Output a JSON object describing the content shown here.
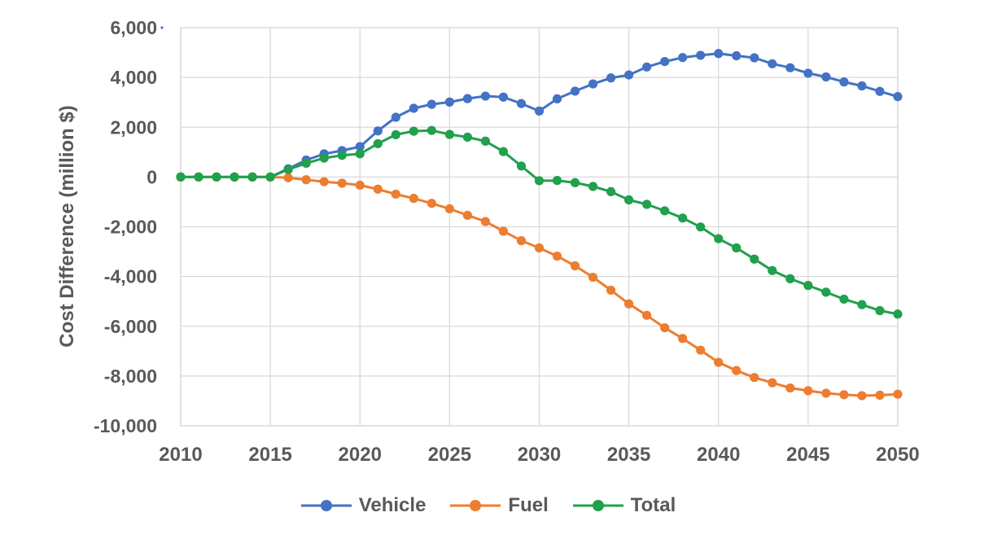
{
  "y_axis_title": "Cost Difference (million $)",
  "colors": {
    "vehicle": "#4472C4",
    "fuel": "#ED7D31",
    "total": "#21A04D",
    "text": "#595959",
    "gridline": "#D9D9D9"
  },
  "legend": [
    {
      "label": "Vehicle",
      "series": "vehicle"
    },
    {
      "label": "Fuel",
      "series": "fuel"
    },
    {
      "label": "Total",
      "series": "total"
    }
  ],
  "chart_data": {
    "type": "line",
    "title": "",
    "xlabel": "",
    "ylabel": "Cost Difference (million $)",
    "x": [
      2010,
      2011,
      2012,
      2013,
      2014,
      2015,
      2016,
      2017,
      2018,
      2019,
      2020,
      2021,
      2022,
      2023,
      2024,
      2025,
      2026,
      2027,
      2028,
      2029,
      2030,
      2031,
      2032,
      2033,
      2034,
      2035,
      2036,
      2037,
      2038,
      2039,
      2040,
      2041,
      2042,
      2043,
      2044,
      2045,
      2046,
      2047,
      2048,
      2049,
      2050
    ],
    "series": [
      {
        "name": "Vehicle",
        "color": "#4472C4",
        "values": [
          0,
          0,
          0,
          0,
          0,
          0,
          330,
          680,
          930,
          1060,
          1220,
          1850,
          2400,
          2760,
          2920,
          3010,
          3150,
          3250,
          3210,
          2950,
          2650,
          3140,
          3450,
          3740,
          3980,
          4100,
          4420,
          4640,
          4800,
          4890,
          4960,
          4870,
          4790,
          4550,
          4390,
          4170,
          4020,
          3820,
          3660,
          3440,
          3230
        ]
      },
      {
        "name": "Fuel",
        "color": "#ED7D31",
        "values": [
          0,
          0,
          0,
          0,
          0,
          0,
          -30,
          -110,
          -190,
          -250,
          -330,
          -490,
          -690,
          -860,
          -1060,
          -1280,
          -1540,
          -1790,
          -2180,
          -2560,
          -2850,
          -3180,
          -3570,
          -4030,
          -4550,
          -5100,
          -5560,
          -6060,
          -6490,
          -6960,
          -7450,
          -7780,
          -8060,
          -8270,
          -8480,
          -8590,
          -8690,
          -8750,
          -8790,
          -8770,
          -8730
        ]
      },
      {
        "name": "Total",
        "color": "#21A04D",
        "values": [
          0,
          0,
          0,
          0,
          0,
          0,
          300,
          550,
          760,
          870,
          930,
          1340,
          1700,
          1840,
          1870,
          1710,
          1600,
          1440,
          1020,
          440,
          -150,
          -140,
          -230,
          -380,
          -590,
          -920,
          -1100,
          -1360,
          -1650,
          -2010,
          -2480,
          -2850,
          -3300,
          -3760,
          -4090,
          -4360,
          -4630,
          -4910,
          -5130,
          -5370,
          -5510
        ]
      }
    ],
    "xlim": [
      2010,
      2050
    ],
    "ylim": [
      -10000,
      6000
    ],
    "x_ticks": [
      2010,
      2015,
      2020,
      2025,
      2030,
      2035,
      2040,
      2045,
      2050
    ],
    "x_tick_labels": [
      "2010",
      "2015",
      "2020",
      "2025",
      "2030",
      "2035",
      "2040",
      "2045",
      "2050"
    ],
    "y_ticks": [
      6000,
      4000,
      2000,
      0,
      -2000,
      -4000,
      -6000,
      -8000,
      -10000
    ],
    "y_tick_labels": [
      "6,000",
      "4,000",
      "2,000",
      "0",
      "-2,000",
      "-4,000",
      "-6,000",
      "-8,000",
      "-10,000"
    ],
    "grid": true,
    "legend_position": "bottom"
  }
}
